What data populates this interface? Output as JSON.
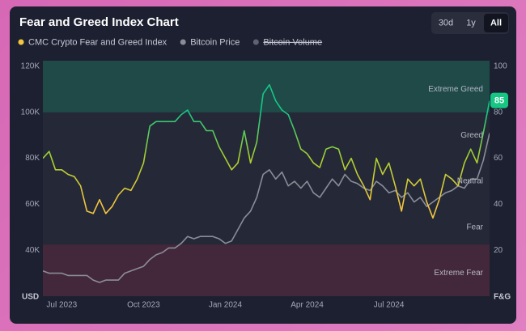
{
  "chart_data": {
    "type": "line",
    "title": "Fear and Greed Index Chart",
    "range_buttons": [
      "30d",
      "1y",
      "All"
    ],
    "active_range": 2,
    "categories": [
      null,
      null,
      null,
      "Jul 2023",
      null,
      null,
      null,
      null,
      null,
      null,
      null,
      null,
      null,
      null,
      null,
      null,
      "Oct 2023",
      null,
      null,
      null,
      null,
      null,
      null,
      null,
      null,
      null,
      null,
      null,
      null,
      "Jan 2024",
      null,
      null,
      null,
      null,
      null,
      null,
      null,
      null,
      null,
      null,
      null,
      null,
      "Apr 2024",
      null,
      null,
      null,
      null,
      null,
      null,
      null,
      null,
      null,
      null,
      null,
      null,
      "Jul 2024",
      null,
      null,
      null,
      null,
      null,
      null,
      null,
      null,
      null,
      null,
      null,
      null,
      null,
      null,
      null,
      null
    ],
    "series": [
      {
        "name": "CMC Crypto Fear and Greed Index",
        "color": "#f3c63f",
        "greed_color": "#16c784",
        "axis": "y2",
        "label_last": true,
        "values": [
          60,
          63,
          55,
          55,
          53,
          52,
          48,
          37,
          36,
          42,
          36,
          39,
          44,
          47,
          46,
          51,
          58,
          74,
          76,
          76,
          76,
          76,
          79,
          81,
          76,
          76,
          72,
          72,
          65,
          60,
          55,
          58,
          72,
          58,
          67,
          88,
          92,
          85,
          81,
          79,
          72,
          64,
          62,
          58,
          56,
          64,
          65,
          64,
          55,
          60,
          53,
          48,
          42,
          60,
          53,
          58,
          48,
          37,
          51,
          48,
          51,
          41,
          34,
          42,
          53,
          51,
          48,
          58,
          64,
          58,
          71,
          85
        ]
      },
      {
        "name": "Bitcoin Price",
        "color": "#8a8d99",
        "values": [
          31000,
          30000,
          30000,
          30000,
          29000,
          29000,
          29000,
          29000,
          27000,
          26000,
          27000,
          27000,
          27000,
          30000,
          31000,
          32000,
          33000,
          36000,
          38000,
          39000,
          41000,
          41000,
          43000,
          46000,
          45000,
          46000,
          46000,
          46000,
          45000,
          43000,
          44000,
          49000,
          54000,
          57000,
          63000,
          73000,
          75000,
          71000,
          74000,
          68000,
          70000,
          67000,
          70000,
          65000,
          63000,
          67000,
          71000,
          68000,
          73000,
          70000,
          69000,
          67000,
          66000,
          70000,
          68000,
          65000,
          66000,
          63000,
          65000,
          61000,
          63000,
          59000,
          61000,
          63000,
          65000,
          66000,
          68000,
          67000,
          71000,
          71000,
          79000,
          91000
        ]
      }
    ],
    "hidden_series": [
      {
        "name": "Bitcoin Volume",
        "color": "#5e6272"
      }
    ],
    "ylabel": "USD",
    "y2label": "F&G",
    "ylim": [
      20000,
      120000
    ],
    "yticks": [
      {
        "value": 40000,
        "label": "40K"
      },
      {
        "value": 60000,
        "label": "60K"
      },
      {
        "value": 80000,
        "label": "80K"
      },
      {
        "value": 100000,
        "label": "100K"
      },
      {
        "value": 120000,
        "label": "120K"
      }
    ],
    "y2lim": [
      0,
      100
    ],
    "y2ticks": [
      20,
      40,
      60,
      80,
      100
    ],
    "zones": [
      {
        "label": "Extreme Greed",
        "from": 80,
        "to": 100,
        "color": "#1f4a48"
      },
      {
        "label": "Greed",
        "from": 60,
        "to": 80
      },
      {
        "label": "Neutral",
        "from": 40,
        "to": 60
      },
      {
        "label": "Fear",
        "from": 20,
        "to": 40
      },
      {
        "label": "Extreme Fear",
        "from": 0,
        "to": 20,
        "color": "#43273a"
      }
    ],
    "grid": false
  }
}
